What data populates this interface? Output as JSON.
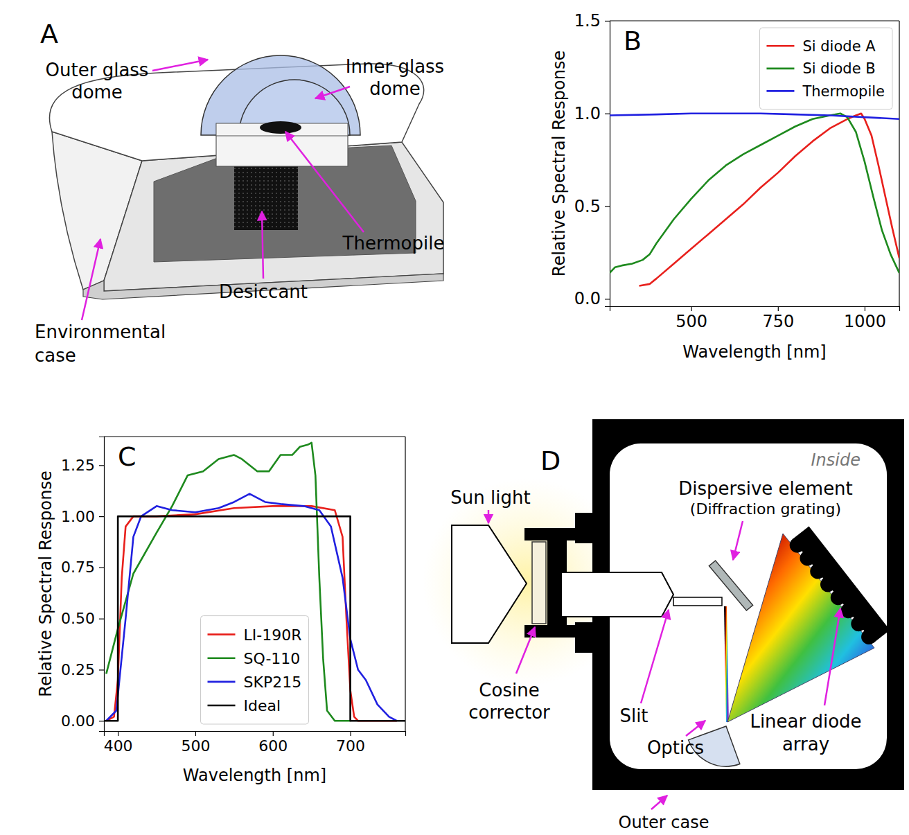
{
  "chart_data": [
    {
      "panel": "B",
      "type": "line",
      "xlabel": "Wavelength [nm]",
      "ylabel": "Relative Spectral Response",
      "xlim": [
        265,
        1100
      ],
      "ylim": [
        -0.04,
        1.5
      ],
      "xticks": [
        500,
        750,
        1000
      ],
      "yticks": [
        {
          "value": 0,
          "label": "0.0"
        },
        {
          "value": 0.5,
          "label": "0.5"
        },
        {
          "value": 1,
          "label": "1.0"
        },
        {
          "value": 1.5,
          "label": "1.5"
        }
      ],
      "legend": "upper right",
      "series": [
        {
          "name": "Si diode A",
          "color": "#e8201c",
          "x": [
            350,
            380,
            400,
            450,
            500,
            550,
            600,
            650,
            700,
            750,
            800,
            850,
            900,
            950,
            975,
            990,
            1000,
            1020,
            1040,
            1060,
            1080,
            1100
          ],
          "values": [
            0.07,
            0.08,
            0.11,
            0.19,
            0.27,
            0.35,
            0.43,
            0.51,
            0.6,
            0.68,
            0.77,
            0.85,
            0.92,
            0.97,
            0.99,
            1.0,
            0.97,
            0.88,
            0.72,
            0.55,
            0.38,
            0.22
          ]
        },
        {
          "name": "Si diode B",
          "color": "#1e8a1e",
          "x": [
            265,
            280,
            300,
            330,
            360,
            380,
            400,
            450,
            500,
            550,
            600,
            650,
            700,
            750,
            800,
            850,
            900,
            930,
            950,
            975,
            1000,
            1025,
            1050,
            1075,
            1100
          ],
          "values": [
            0.14,
            0.17,
            0.18,
            0.19,
            0.21,
            0.24,
            0.3,
            0.43,
            0.54,
            0.64,
            0.72,
            0.78,
            0.83,
            0.88,
            0.93,
            0.97,
            0.99,
            1.0,
            0.98,
            0.9,
            0.74,
            0.55,
            0.37,
            0.24,
            0.14
          ]
        },
        {
          "name": "Thermopile",
          "color": "#2020e0",
          "x": [
            265,
            400,
            500,
            600,
            700,
            800,
            900,
            1000,
            1100
          ],
          "values": [
            0.99,
            0.995,
            1.0,
            1.0,
            1.0,
            0.995,
            0.99,
            0.98,
            0.97
          ]
        }
      ]
    },
    {
      "panel": "C",
      "type": "line",
      "xlabel": "Wavelength [nm]",
      "ylabel": "Relative Spectral Response",
      "xlim": [
        382,
        771
      ],
      "ylim": [
        -0.05,
        1.39
      ],
      "xticks": [
        400,
        500,
        600,
        700
      ],
      "yticks": [
        {
          "value": 0,
          "label": "0.00"
        },
        {
          "value": 0.25,
          "label": "0.25"
        },
        {
          "value": 0.5,
          "label": "0.50"
        },
        {
          "value": 0.75,
          "label": "0.75"
        },
        {
          "value": 1,
          "label": "1.00"
        },
        {
          "value": 1.25,
          "label": "1.25"
        }
      ],
      "legend": "lower center",
      "series": [
        {
          "name": "LI-190R",
          "color": "#e8201c",
          "x": [
            385,
            395,
            400,
            405,
            410,
            420,
            450,
            500,
            550,
            600,
            650,
            680,
            690,
            695,
            700,
            705,
            710,
            760
          ],
          "values": [
            0.0,
            0.02,
            0.2,
            0.7,
            0.95,
            1.0,
            1.0,
            1.01,
            1.04,
            1.05,
            1.05,
            1.03,
            0.9,
            0.5,
            0.15,
            0.02,
            0.0,
            0.0
          ]
        },
        {
          "name": "SQ-110",
          "color": "#1e8a1e",
          "x": [
            385,
            400,
            420,
            450,
            470,
            490,
            510,
            530,
            550,
            560,
            580,
            595,
            610,
            625,
            635,
            645,
            650,
            655,
            660,
            665,
            670,
            680,
            700
          ],
          "values": [
            0.23,
            0.45,
            0.72,
            0.92,
            1.05,
            1.2,
            1.22,
            1.28,
            1.3,
            1.28,
            1.22,
            1.22,
            1.3,
            1.3,
            1.34,
            1.35,
            1.36,
            1.2,
            0.7,
            0.3,
            0.05,
            0.0,
            0.0
          ]
        },
        {
          "name": "SKP215",
          "color": "#2020e0",
          "x": [
            385,
            398,
            410,
            420,
            430,
            450,
            470,
            500,
            530,
            550,
            570,
            590,
            610,
            640,
            660,
            675,
            690,
            700,
            710,
            720,
            735,
            750,
            760
          ],
          "values": [
            0.0,
            0.05,
            0.5,
            0.9,
            1.0,
            1.05,
            1.03,
            1.02,
            1.04,
            1.07,
            1.11,
            1.07,
            1.06,
            1.05,
            1.03,
            0.95,
            0.7,
            0.4,
            0.25,
            0.2,
            0.08,
            0.02,
            0.0
          ]
        },
        {
          "name": "Ideal",
          "color": "#000000",
          "x": [
            382,
            400,
            400,
            700,
            700,
            771
          ],
          "values": [
            0,
            0,
            1,
            1,
            0,
            0
          ]
        }
      ]
    }
  ],
  "panel_a": {
    "letter": "A",
    "labels": {
      "outer_dome": [
        "Outer glass",
        "dome"
      ],
      "inner_dome": [
        "Inner glass",
        "dome"
      ],
      "thermopile": [
        "Thermopile"
      ],
      "desiccant": [
        "Desiccant"
      ],
      "case": [
        "Environmental",
        "case"
      ]
    }
  },
  "panel_d": {
    "letter": "D",
    "labels": {
      "inside": [
        "Inside"
      ],
      "sun": [
        "Sun light"
      ],
      "grating": [
        "Dispersive element",
        "(Diffraction grating)"
      ],
      "cosine": [
        "Cosine",
        "corrector"
      ],
      "slit": [
        "Slit"
      ],
      "optics": [
        "Optics"
      ],
      "array": [
        "Linear diode",
        "array"
      ],
      "outer_case": [
        "Outer case"
      ]
    }
  }
}
